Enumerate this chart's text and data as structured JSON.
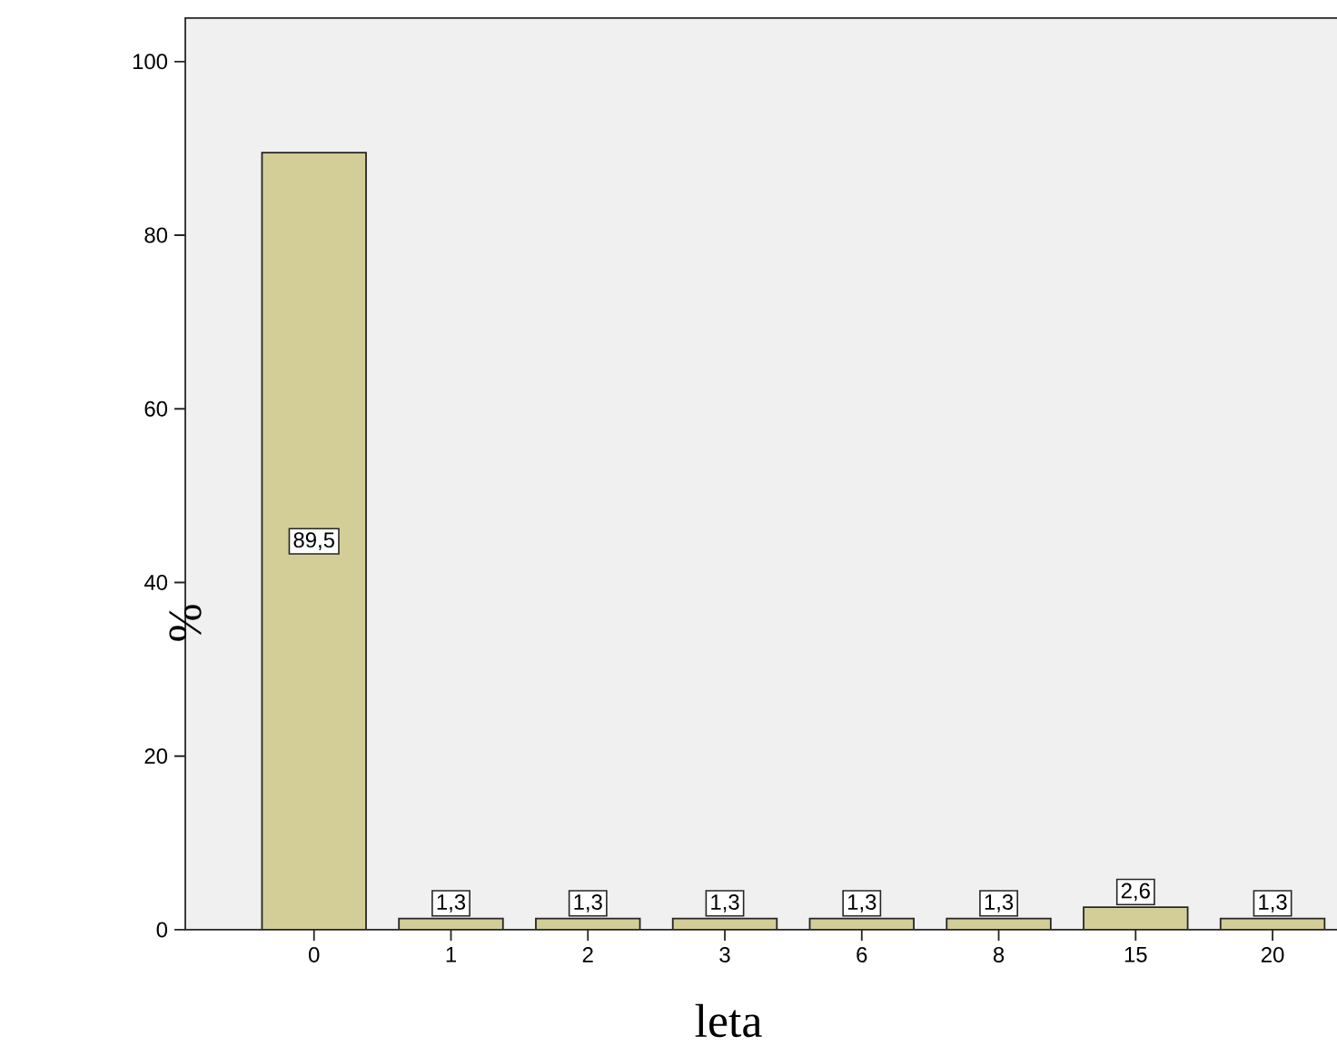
{
  "chart_data": {
    "type": "bar",
    "xlabel": "leta",
    "ylabel": "%",
    "categories": [
      "0",
      "1",
      "2",
      "3",
      "6",
      "8",
      "15",
      "20"
    ],
    "values": [
      89.5,
      1.3,
      1.3,
      1.3,
      1.3,
      1.3,
      2.6,
      1.3
    ],
    "value_labels": [
      "89,5",
      "1,3",
      "1,3",
      "1,3",
      "1,3",
      "1,3",
      "2,6",
      "1,3"
    ],
    "color": "#d3ce97",
    "ylim": [
      0,
      105
    ],
    "yticks": [
      0,
      20,
      40,
      60,
      80,
      100
    ],
    "grid": false
  }
}
